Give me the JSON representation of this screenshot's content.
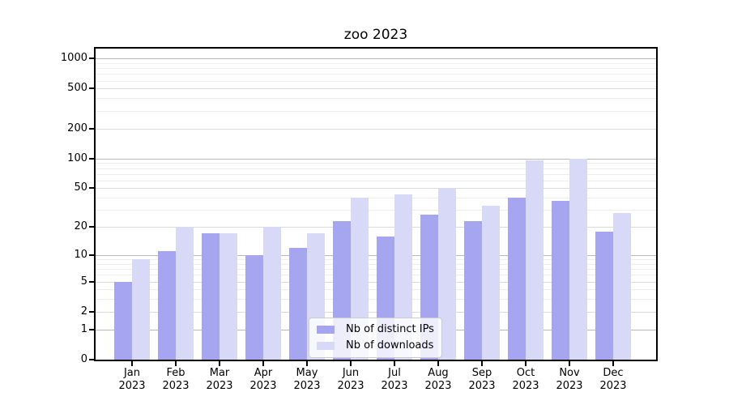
{
  "chart_data": {
    "type": "bar",
    "title": "zoo 2023",
    "categories": [
      "Jan 2023",
      "Feb 2023",
      "Mar 2023",
      "Apr 2023",
      "May 2023",
      "Jun 2023",
      "Jul 2023",
      "Aug 2023",
      "Sep 2023",
      "Oct 2023",
      "Nov 2023",
      "Dec 2023"
    ],
    "x_axis": {
      "months": [
        "Jan",
        "Feb",
        "Mar",
        "Apr",
        "May",
        "Jun",
        "Jul",
        "Aug",
        "Sep",
        "Oct",
        "Nov",
        "Dec"
      ],
      "year": "2023"
    },
    "series": [
      {
        "name": "Nb of distinct IPs",
        "color": "#a6a6f0",
        "values": [
          5,
          11,
          17,
          10,
          12,
          23,
          16,
          27,
          23,
          40,
          37,
          18
        ]
      },
      {
        "name": "Nb of downloads",
        "color": "#d8d8f7",
        "values": [
          9,
          20,
          17,
          20,
          17,
          40,
          43,
          50,
          33,
          95,
          100,
          28
        ]
      }
    ],
    "y_axis": {
      "scale": "log10(1+y)",
      "major_ticks": [
        1000,
        500,
        200,
        100,
        50,
        20,
        10,
        5,
        2,
        1,
        0
      ],
      "minor_ticks": [
        3,
        4,
        6,
        7,
        8,
        9,
        30,
        40,
        60,
        70,
        80,
        90,
        300,
        400,
        600,
        700,
        800,
        900
      ],
      "ylim": [
        0,
        1250
      ]
    },
    "legend": {
      "position": "lower center",
      "labels": [
        "Nb of distinct IPs",
        "Nb of downloads"
      ]
    },
    "grid": true,
    "colors": {
      "decade_gridline": "#b8b8b8",
      "major_gridline": "#dadada",
      "minor_gridline": "#ededed",
      "axis": "#000000"
    }
  }
}
